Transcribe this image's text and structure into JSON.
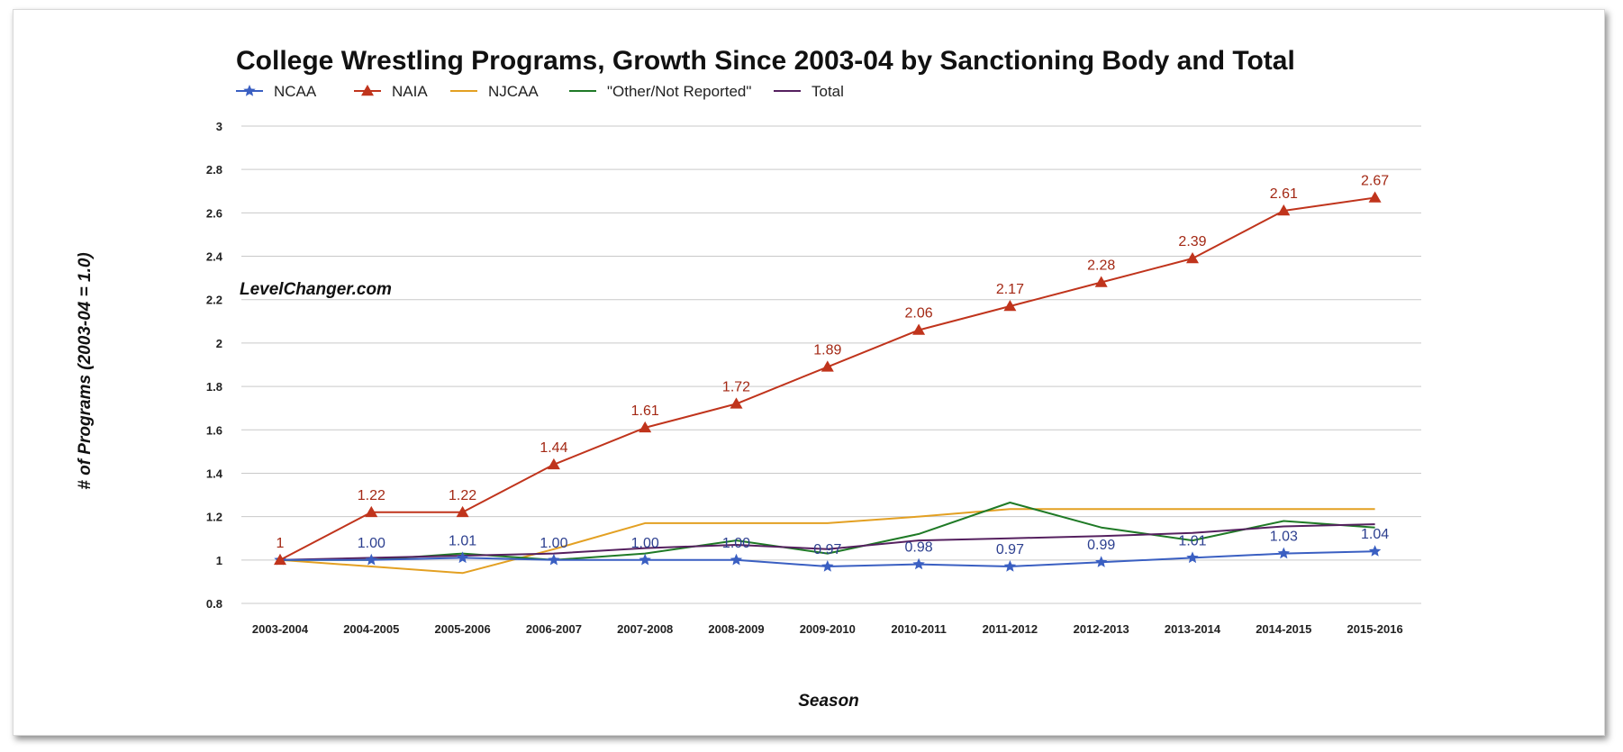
{
  "chart_data": {
    "type": "line",
    "title": "College Wrestling Programs, Growth Since 2003-04 by Sanctioning Body and Total",
    "watermark": "LevelChanger.com",
    "xlabel": "Season",
    "ylabel": "# of Programs (2003-04 = 1.0)",
    "ylim": [
      0.8,
      3
    ],
    "yticks": [
      "3",
      "2.8",
      "2.6",
      "2.4",
      "2.2",
      "2",
      "1.8",
      "1.6",
      "1.4",
      "1.2",
      "1",
      "0.8"
    ],
    "grid": true,
    "legend_position": "top-left",
    "categories": [
      "2003-2004",
      "2004-2005",
      "2005-2006",
      "2006-2007",
      "2007-2008",
      "2008-2009",
      "2009-2010",
      "2010-2011",
      "2011-2012",
      "2012-2013",
      "2013-2014",
      "2014-2015",
      "2015-2016"
    ],
    "series": [
      {
        "name": "NCAA",
        "color": "#3a5fc2",
        "marker": "star",
        "values": [
          1.0,
          1.0,
          1.01,
          1.0,
          1.0,
          1.0,
          0.97,
          0.98,
          0.97,
          0.99,
          1.01,
          1.03,
          1.04
        ],
        "labels": [
          "",
          "1.00",
          "1.01",
          "1.00",
          "1.00",
          "1.00",
          "0.97",
          "0.98",
          "0.97",
          "0.99",
          "1.01",
          "1.03",
          "1.04"
        ]
      },
      {
        "name": "NAIA",
        "color": "#c0341c",
        "marker": "triangle",
        "values": [
          1,
          1.22,
          1.22,
          1.44,
          1.61,
          1.72,
          1.89,
          2.06,
          2.17,
          2.28,
          2.39,
          2.61,
          2.67
        ],
        "labels": [
          "1",
          "1.22",
          "1.22",
          "1.44",
          "1.61",
          "1.72",
          "1.89",
          "2.06",
          "2.17",
          "2.28",
          "2.39",
          "2.61",
          "2.67"
        ]
      },
      {
        "name": "NJCAA",
        "color": "#e3a022",
        "marker": "none",
        "values": [
          1.0,
          0.97,
          0.94,
          1.05,
          1.17,
          1.17,
          1.17,
          1.2,
          1.235,
          1.235,
          1.235,
          1.235,
          1.235
        ]
      },
      {
        "name": "\"Other/Not Reported\"",
        "color": "#1f7a26",
        "marker": "none",
        "values": [
          1.0,
          1.0,
          1.03,
          1.0,
          1.03,
          1.09,
          1.03,
          1.12,
          1.265,
          1.15,
          1.09,
          1.18,
          1.15
        ]
      },
      {
        "name": "Total",
        "color": "#55205f",
        "marker": "none",
        "values": [
          1.0,
          1.01,
          1.02,
          1.03,
          1.055,
          1.07,
          1.05,
          1.09,
          1.1,
          1.11,
          1.125,
          1.155,
          1.165
        ]
      }
    ]
  }
}
